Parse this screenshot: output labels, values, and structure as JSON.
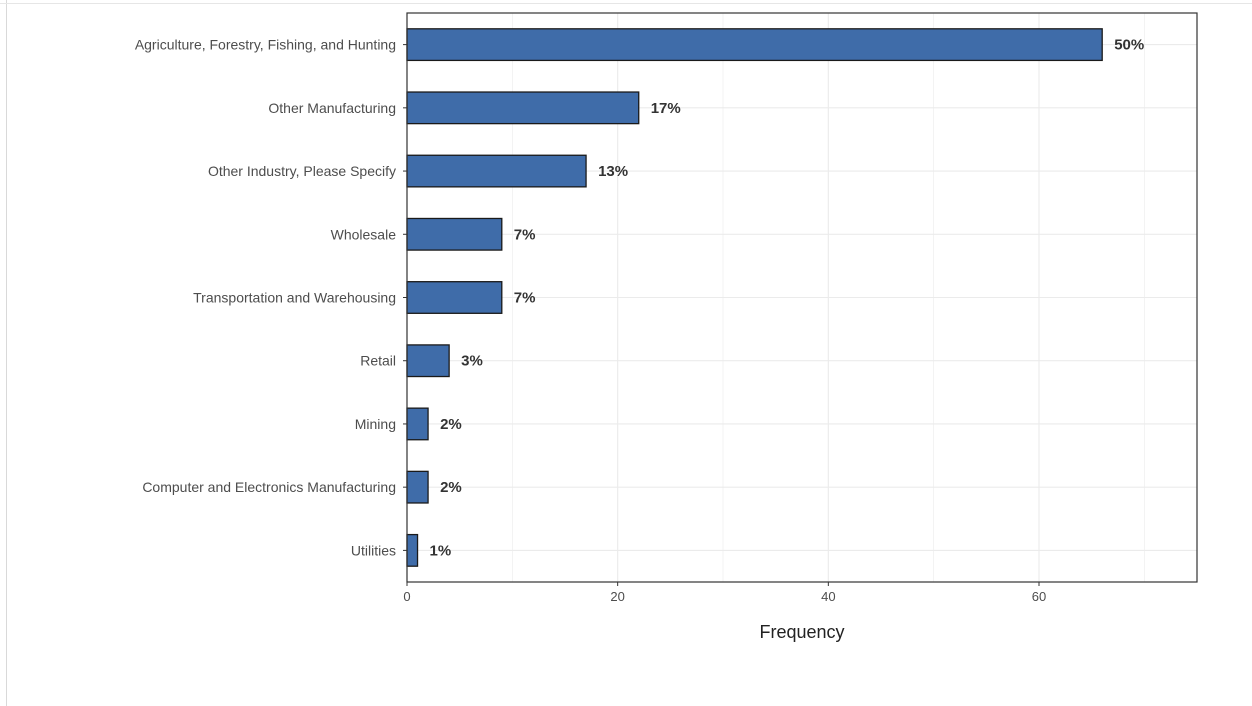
{
  "chart_data": {
    "type": "bar",
    "orientation": "horizontal",
    "categories": [
      "Agriculture, Forestry, Fishing, and Hunting",
      "Other Manufacturing",
      "Other Industry, Please Specify",
      "Wholesale",
      "Transportation and Warehousing",
      "Retail",
      "Mining",
      "Computer and Electronics Manufacturing",
      "Utilities"
    ],
    "values": [
      66,
      22,
      17,
      9,
      9,
      4,
      2,
      2,
      1
    ],
    "data_labels": [
      "50%",
      "17%",
      "13%",
      "7%",
      "7%",
      "3%",
      "2%",
      "2%",
      "1%"
    ],
    "xlabel": "Frequency",
    "ylabel": "",
    "xlim": [
      0,
      75
    ],
    "xticks": [
      0,
      20,
      40,
      60
    ],
    "grid": true,
    "legend": "none",
    "colors": {
      "bar": "#3f6ca9",
      "bar_edge": "#1a1a1a",
      "grid": "#ebebeb",
      "panel_border": "#333333"
    }
  }
}
